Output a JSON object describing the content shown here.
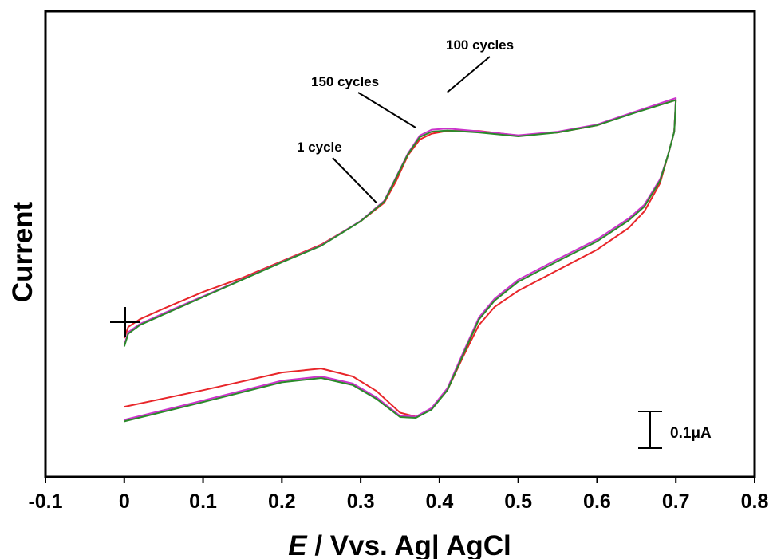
{
  "chart_data": {
    "type": "line",
    "xlabel_italic": "E",
    "xlabel_rest": " / Vvs. Ag| AgCl",
    "ylabel": "Current",
    "xlim": [
      -0.1,
      0.8
    ],
    "ylim": [
      0,
      1
    ],
    "x_ticks": [
      "-0.1",
      "0",
      "0.1",
      "0.2",
      "0.3",
      "0.4",
      "0.5",
      "0.6",
      "0.7",
      "0.8"
    ],
    "grid": false,
    "scale_bar_label": "0.1μA",
    "annotations": [
      {
        "text": "100 cycles",
        "x": 0.41,
        "y": 0.92
      },
      {
        "text": "150 cycles",
        "x": 0.37,
        "y": 0.83
      },
      {
        "text": "1 cycle",
        "x": 0.32,
        "y": 0.64
      }
    ],
    "series": [
      {
        "color": "#e8262a",
        "forward": [
          [
            0.0,
            0.297
          ],
          [
            0.005,
            0.325
          ],
          [
            0.02,
            0.345
          ],
          [
            0.05,
            0.372
          ],
          [
            0.1,
            0.414
          ],
          [
            0.15,
            0.45
          ],
          [
            0.2,
            0.492
          ],
          [
            0.25,
            0.534
          ],
          [
            0.3,
            0.593
          ],
          [
            0.33,
            0.64
          ],
          [
            0.345,
            0.695
          ],
          [
            0.36,
            0.76
          ],
          [
            0.375,
            0.8
          ],
          [
            0.39,
            0.815
          ],
          [
            0.41,
            0.822
          ],
          [
            0.45,
            0.822
          ],
          [
            0.5,
            0.81
          ],
          [
            0.55,
            0.818
          ],
          [
            0.6,
            0.836
          ],
          [
            0.65,
            0.87
          ],
          [
            0.7,
            0.9
          ]
        ],
        "reverse": [
          [
            0.7,
            0.9
          ],
          [
            0.698,
            0.82
          ],
          [
            0.69,
            0.76
          ],
          [
            0.68,
            0.69
          ],
          [
            0.66,
            0.618
          ],
          [
            0.64,
            0.576
          ],
          [
            0.6,
            0.521
          ],
          [
            0.55,
            0.469
          ],
          [
            0.5,
            0.417
          ],
          [
            0.47,
            0.376
          ],
          [
            0.45,
            0.33
          ],
          [
            0.43,
            0.25
          ],
          [
            0.41,
            0.165
          ],
          [
            0.39,
            0.117
          ],
          [
            0.37,
            0.098
          ],
          [
            0.35,
            0.108
          ],
          [
            0.32,
            0.163
          ],
          [
            0.29,
            0.2
          ],
          [
            0.25,
            0.22
          ],
          [
            0.2,
            0.21
          ],
          [
            0.1,
            0.165
          ],
          [
            0.0,
            0.123
          ]
        ]
      },
      {
        "color": "#cc33cc",
        "forward": [
          [
            0.0,
            0.28
          ],
          [
            0.005,
            0.312
          ],
          [
            0.02,
            0.333
          ],
          [
            0.05,
            0.36
          ],
          [
            0.1,
            0.403
          ],
          [
            0.15,
            0.446
          ],
          [
            0.2,
            0.49
          ],
          [
            0.25,
            0.532
          ],
          [
            0.3,
            0.594
          ],
          [
            0.33,
            0.645
          ],
          [
            0.345,
            0.705
          ],
          [
            0.36,
            0.765
          ],
          [
            0.375,
            0.81
          ],
          [
            0.39,
            0.825
          ],
          [
            0.41,
            0.828
          ],
          [
            0.45,
            0.821
          ],
          [
            0.5,
            0.811
          ],
          [
            0.55,
            0.82
          ],
          [
            0.6,
            0.838
          ],
          [
            0.65,
            0.872
          ],
          [
            0.7,
            0.905
          ]
        ],
        "reverse": [
          [
            0.7,
            0.905
          ],
          [
            0.698,
            0.82
          ],
          [
            0.69,
            0.76
          ],
          [
            0.68,
            0.7
          ],
          [
            0.66,
            0.635
          ],
          [
            0.64,
            0.6
          ],
          [
            0.6,
            0.547
          ],
          [
            0.55,
            0.497
          ],
          [
            0.5,
            0.445
          ],
          [
            0.47,
            0.397
          ],
          [
            0.45,
            0.349
          ],
          [
            0.43,
            0.26
          ],
          [
            0.41,
            0.17
          ],
          [
            0.39,
            0.12
          ],
          [
            0.37,
            0.098
          ],
          [
            0.35,
            0.1
          ],
          [
            0.32,
            0.147
          ],
          [
            0.29,
            0.182
          ],
          [
            0.25,
            0.2
          ],
          [
            0.2,
            0.189
          ],
          [
            0.1,
            0.139
          ],
          [
            0.0,
            0.09
          ]
        ]
      },
      {
        "color": "#2a8a2a",
        "forward": [
          [
            0.0,
            0.276
          ],
          [
            0.005,
            0.308
          ],
          [
            0.02,
            0.33
          ],
          [
            0.05,
            0.357
          ],
          [
            0.1,
            0.401
          ],
          [
            0.15,
            0.445
          ],
          [
            0.2,
            0.489
          ],
          [
            0.25,
            0.531
          ],
          [
            0.3,
            0.593
          ],
          [
            0.33,
            0.643
          ],
          [
            0.345,
            0.703
          ],
          [
            0.36,
            0.763
          ],
          [
            0.375,
            0.806
          ],
          [
            0.39,
            0.82
          ],
          [
            0.41,
            0.823
          ],
          [
            0.45,
            0.818
          ],
          [
            0.5,
            0.808
          ],
          [
            0.55,
            0.818
          ],
          [
            0.6,
            0.836
          ],
          [
            0.65,
            0.869
          ],
          [
            0.7,
            0.9
          ]
        ],
        "reverse": [
          [
            0.7,
            0.9
          ],
          [
            0.698,
            0.82
          ],
          [
            0.69,
            0.76
          ],
          [
            0.68,
            0.696
          ],
          [
            0.66,
            0.63
          ],
          [
            0.64,
            0.595
          ],
          [
            0.6,
            0.542
          ],
          [
            0.55,
            0.492
          ],
          [
            0.5,
            0.44
          ],
          [
            0.47,
            0.392
          ],
          [
            0.45,
            0.344
          ],
          [
            0.43,
            0.255
          ],
          [
            0.41,
            0.165
          ],
          [
            0.39,
            0.116
          ],
          [
            0.37,
            0.095
          ],
          [
            0.35,
            0.097
          ],
          [
            0.32,
            0.143
          ],
          [
            0.29,
            0.178
          ],
          [
            0.25,
            0.196
          ],
          [
            0.2,
            0.185
          ],
          [
            0.1,
            0.135
          ],
          [
            0.0,
            0.086
          ]
        ]
      }
    ]
  }
}
